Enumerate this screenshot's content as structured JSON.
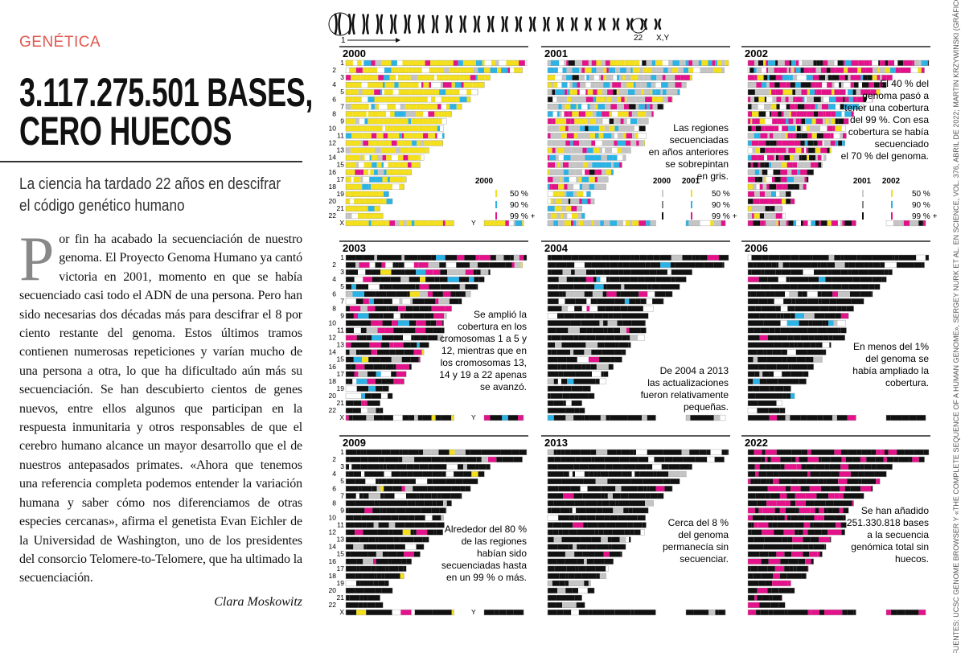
{
  "section": "GENÉTICA",
  "title": [
    "3.117.275.501 BASES,",
    "CERO HUECOS"
  ],
  "subtitle": [
    "La ciencia ha tardado 22 años en descifrar",
    "el código genético humano"
  ],
  "body": {
    "drop_cap": "P",
    "text": "or fin ha acabado la secuenciación de nuestro genoma. El Proyecto Genoma Humano ya cantó victoria en 2001, momento en que se había secuenciado casi todo el ADN de una persona. Pero han sido necesarias dos décadas más para descifrar el 8 por ciento restante del genoma. Estos últimos tramos contienen numerosas repeticiones y varían mucho de una persona a otra, lo que ha dificultado aún más su secuenciación. Se han descubierto cientos de genes nuevos, entre ellos algunos que participan en la respuesta inmunitaria y otros responsables de que el cerebro humano alcance un mayor desarrollo que el de nuestros antepasados primates. «Ahora que tenemos una referencia completa podemos entender la variación humana y saber cómo nos diferenciamos de otras especies cercanas», afirma el genetista Evan Eichler de la Universidad de Washington, uno de los presidentes del consorcio Telomere-to-Telomere, que ha ultimado la secuenciación."
  },
  "author": "Clara Moskowitz",
  "strip_labels": {
    "first": "1",
    "last": "22",
    "sex": "X,Y"
  },
  "chromosomes": [
    "1",
    "2",
    "3",
    "4",
    "5",
    "6",
    "7",
    "8",
    "9",
    "10",
    "11",
    "12",
    "13",
    "14",
    "15",
    "16",
    "17",
    "18",
    "19",
    "20",
    "21",
    "22",
    "X",
    "Y"
  ],
  "legend_levels": [
    "50 %",
    "90 %",
    "99 % +"
  ],
  "panels": [
    {
      "year": "2000",
      "legend_years": [
        "2000"
      ]
    },
    {
      "year": "2001",
      "legend_years": [
        "2000",
        "2001"
      ],
      "note": [
        "Las regiones",
        "secuenciadas",
        "en años anteriores",
        "se sobrepintan",
        "en gris."
      ]
    },
    {
      "year": "2002",
      "legend_years": [
        "2001",
        "2002"
      ],
      "note": [
        "El 40 % del",
        "genoma pasó a",
        "tener una cobertura",
        "del 99 %. Con esa",
        "cobertura se había",
        "secuenciado",
        "el 70 % del genoma."
      ]
    },
    {
      "year": "2003",
      "note": [
        "Se amplió la",
        "cobertura en los",
        "cromosomas 1 a 5 y",
        "12, mientras que en",
        "los cromosomas 13,",
        "14 y 19 a 22 apenas",
        "se avanzó."
      ]
    },
    {
      "year": "2004",
      "note": [
        "De 2004 a 2013",
        "las actualizaciones",
        "fueron relativamente",
        "pequeñas."
      ]
    },
    {
      "year": "2006",
      "note": [
        "En menos del 1%",
        "del genoma se",
        "había ampliado la",
        "cobertura."
      ]
    },
    {
      "year": "2009",
      "note": [
        "Alrededor del 80 %",
        "de las regiones",
        "habían sido",
        "secuenciadas hasta",
        "en un 99 % o más."
      ]
    },
    {
      "year": "2013",
      "note": [
        "Cerca del 8 %",
        "del genoma",
        "permanecía sin",
        "secuenciar."
      ]
    },
    {
      "year": "2022",
      "note": [
        "Se han añadido",
        "251.330.818 bases",
        "a la secuencia",
        "genómica total sin",
        "huecos."
      ]
    }
  ],
  "credit": "FUENTES: UCSC GENOME BROWSER Y «THE COMPLETE SEQUENCE OF A HUMAN GENOME», SERGEY NURK ET AL. EN SCIENCE, VOL. 376, ABRIL DE 2022; MARTIN KRZYWINSKI (GRÁFICOS)"
}
